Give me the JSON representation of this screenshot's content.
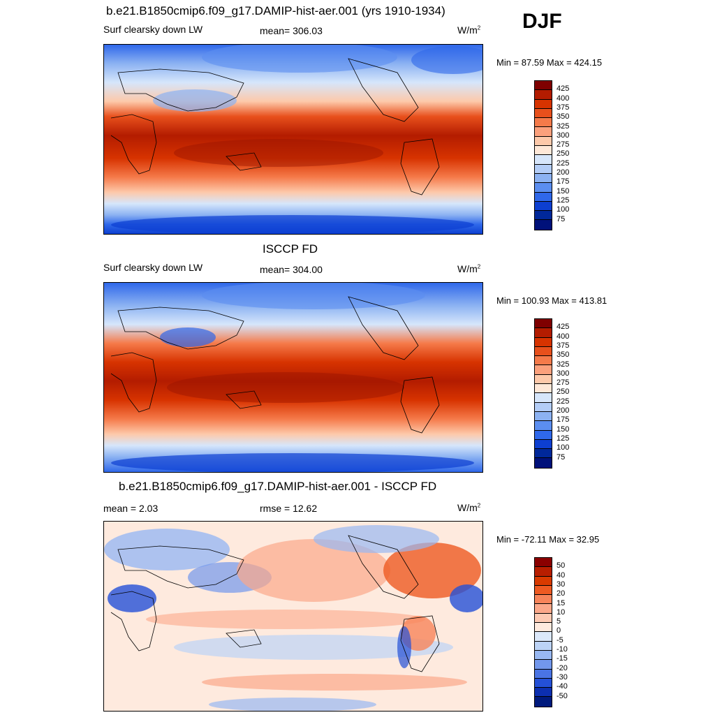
{
  "season": "DJF",
  "units_base": "W/m",
  "units_exp": "2",
  "panel1": {
    "title": "b.e21.B1850cmip6.f09_g17.DAMIP-hist-aer.001 (yrs 1910-1934)",
    "variable": "Surf clearsky down LW",
    "mean": "mean= 306.03",
    "minmax": "Min =  87.59 Max = 424.15",
    "levels": [
      "425",
      "400",
      "375",
      "350",
      "325",
      "300",
      "275",
      "250",
      "225",
      "200",
      "175",
      "150",
      "125",
      "100",
      "75"
    ]
  },
  "panel2": {
    "title": "ISCCP FD",
    "variable": "Surf clearsky down LW",
    "mean": "mean= 304.00",
    "minmax": "Min = 100.93 Max = 413.81",
    "levels": [
      "425",
      "400",
      "375",
      "350",
      "325",
      "300",
      "275",
      "250",
      "225",
      "200",
      "175",
      "150",
      "125",
      "100",
      "75"
    ]
  },
  "panel3": {
    "title": "b.e21.B1850cmip6.f09_g17.DAMIP-hist-aer.001 - ISCCP FD",
    "mean": "mean =   2.03",
    "rmse": "rmse =  12.62",
    "minmax": "Min = -72.11 Max =  32.95",
    "levels": [
      "50",
      "40",
      "30",
      "20",
      "15",
      "10",
      "5",
      "0",
      "-5",
      "-10",
      "-15",
      "-20",
      "-30",
      "-40",
      "-50"
    ]
  },
  "colors": {
    "field_scale": [
      "#7f0000",
      "#b31c00",
      "#d73300",
      "#e8501c",
      "#f57a4a",
      "#fba07c",
      "#fdc9aa",
      "#fee8d8",
      "#d6e6fb",
      "#b3cdf7",
      "#8cb2f2",
      "#5b8ef0",
      "#2f68ea",
      "#0d3fd1",
      "#00289a",
      "#00117a"
    ],
    "diff_scale": [
      "#8b0000",
      "#b81e00",
      "#d93a00",
      "#ee5a22",
      "#f7845a",
      "#fba88a",
      "#fdcab3",
      "#feeade",
      "#dbe8fa",
      "#bcd3f6",
      "#98b8f2",
      "#7297ec",
      "#4a74e4",
      "#2450d7",
      "#0c2fb0",
      "#001a7d"
    ]
  }
}
